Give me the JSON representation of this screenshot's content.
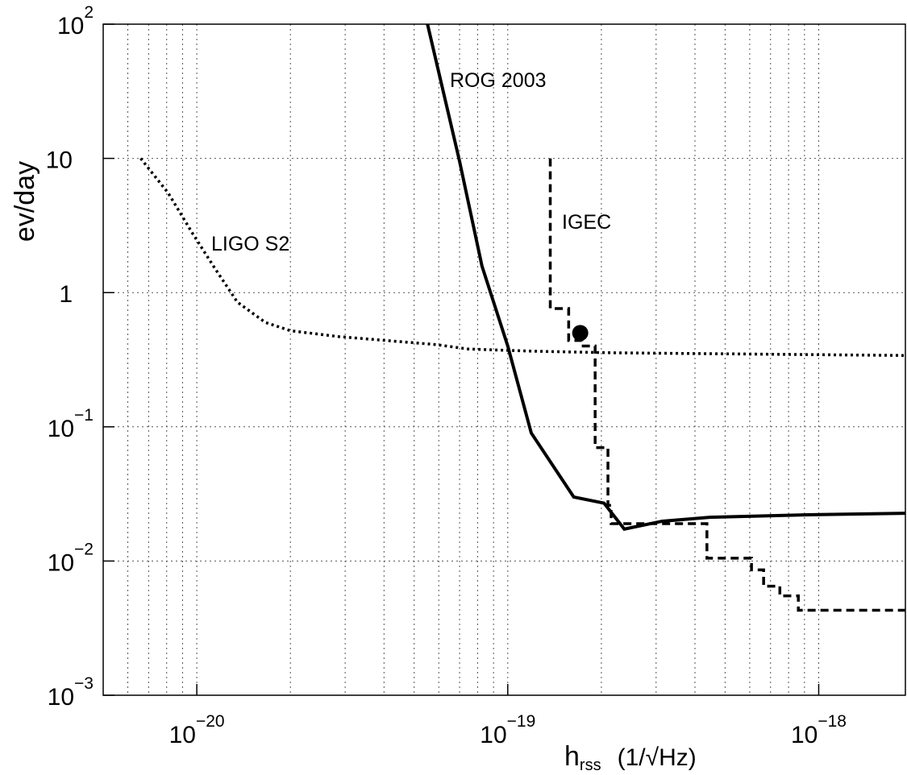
{
  "chart_data": {
    "type": "line",
    "xscale": "log",
    "yscale": "log",
    "grid": true,
    "ylabel": "ev/day",
    "xlabel": "h",
    "xlabel_sub": "rss",
    "xlabel_unit": "(1/√Hz)",
    "xlim": [
      5e-21,
      1.9e-18
    ],
    "ylim": [
      0.001,
      100
    ],
    "xticks": [
      {
        "value": 1e-20,
        "label": "10",
        "exponent": "−20"
      },
      {
        "value": 1e-19,
        "label": "10",
        "exponent": "−19"
      },
      {
        "value": 1e-18,
        "label": "10",
        "exponent": "−18"
      }
    ],
    "xgrid_minor": [
      6e-21,
      7e-21,
      8e-21,
      9e-21,
      2e-20,
      3e-20,
      4e-20,
      5e-20,
      6e-20,
      7e-20,
      8e-20,
      9e-20,
      2e-19,
      3e-19,
      4e-19,
      5e-19,
      6e-19,
      7e-19,
      8e-19,
      9e-19
    ],
    "yticks": [
      {
        "value": 0.001,
        "label": "10",
        "exponent": "−3"
      },
      {
        "value": 0.01,
        "label": "10",
        "exponent": "−2"
      },
      {
        "value": 0.1,
        "label": "10",
        "exponent": "−1"
      },
      1,
      10,
      {
        "value": 100,
        "label": "10",
        "exponent": "2"
      }
    ],
    "series": [
      {
        "name": "ROG 2003",
        "color": "#000000",
        "style": "solid",
        "x": [
          5.52e-20,
          7e-20,
          8.26e-20,
          1e-19,
          1.19e-19,
          1.63e-19,
          2.04e-19,
          2.37e-19,
          3.14e-19,
          4.5e-19,
          9.25e-19,
          1.9e-18
        ],
        "values": [
          100,
          9.5,
          1.58,
          0.4,
          0.09,
          0.03,
          0.027,
          0.0173,
          0.0198,
          0.0212,
          0.0221,
          0.0227
        ]
      },
      {
        "name": "LIGO S2",
        "color": "#000000",
        "style": "dotted",
        "x": [
          6.6e-21,
          8.1e-21,
          9.7e-21,
          1.13e-20,
          1.35e-20,
          1.66e-20,
          2e-20,
          2.86e-20,
          5.87e-20,
          7.45e-20,
          1.2e-19,
          2.19e-19,
          1.9e-18
        ],
        "values": [
          10,
          5.5,
          2.75,
          1.58,
          0.85,
          0.6,
          0.52,
          0.47,
          0.41,
          0.38,
          0.366,
          0.356,
          0.34
        ]
      },
      {
        "name": "IGEC",
        "color": "#000000",
        "style": "dashed",
        "step": "post",
        "x": [
          1.37e-19,
          1.37e-19,
          1.57e-19,
          1.73e-19,
          1.91e-19,
          2.1e-19,
          2.15e-19,
          4.37e-19,
          6.08e-19,
          6.65e-19,
          7.5e-19,
          8.6e-19,
          1.9e-18
        ],
        "values": [
          10,
          0.76,
          0.44,
          0.4,
          0.07,
          0.026,
          0.019,
          0.0105,
          0.0086,
          0.0065,
          0.0055,
          0.0043,
          0.0043
        ]
      },
      {
        "marker": "circle",
        "color": "#000000",
        "x": [
          1.71e-19
        ],
        "values": [
          0.5
        ]
      }
    ]
  }
}
